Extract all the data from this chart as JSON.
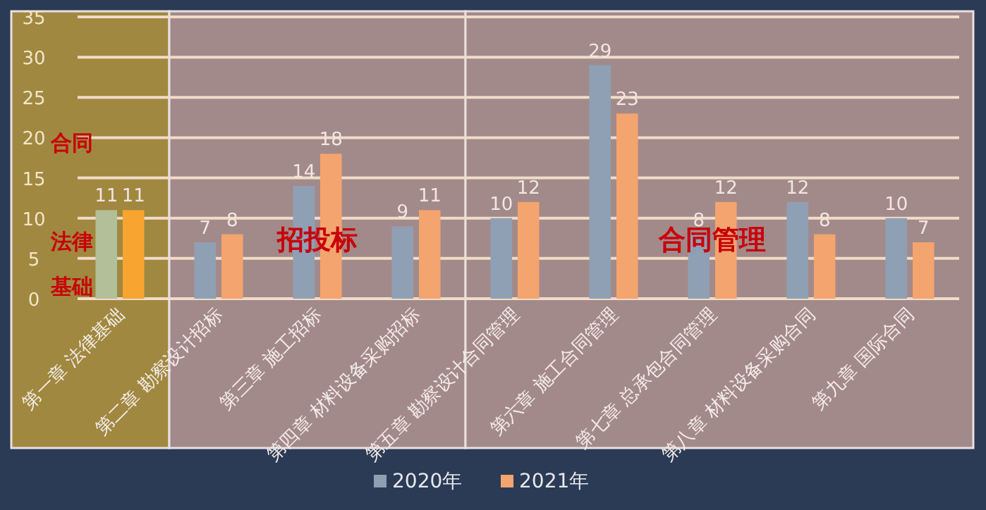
{
  "chart_data": {
    "type": "bar",
    "categories": [
      "第一章 法律基础",
      "第二章 勘察设计招标",
      "第三章 施工招标",
      "第四章 材料设备采购招标",
      "第五章 勘察设计合同管理",
      "第六章 施工合同管理",
      "第七章 总承包合同管理",
      "第八章 材料设备采购合同",
      "第九章 国际合同"
    ],
    "series": [
      {
        "name": "2020年",
        "color": "#8fa0b4",
        "colors": [
          "#b3bf98",
          "#8fa0b4",
          "#8fa0b4",
          "#8fa0b4",
          "#8fa0b4",
          "#8fa0b4",
          "#8fa0b4",
          "#8fa0b4",
          "#8fa0b4"
        ],
        "values": [
          11,
          7,
          14,
          9,
          10,
          29,
          8,
          12,
          10
        ]
      },
      {
        "name": "2021年",
        "color": "#f4a46e",
        "colors": [
          "#f8a430",
          "#f4a46e",
          "#f4a46e",
          "#f4a46e",
          "#f4a46e",
          "#f4a46e",
          "#f4a46e",
          "#f4a46e",
          "#f4a46e"
        ],
        "values": [
          11,
          8,
          18,
          11,
          12,
          23,
          12,
          8,
          7
        ]
      }
    ],
    "ylim": [
      0,
      35
    ],
    "yticks": [
      0,
      5,
      10,
      15,
      20,
      25,
      30,
      35
    ],
    "grid": "y",
    "data_labels": true,
    "annotations": [
      "合同",
      "法律",
      "基础"
    ],
    "legend": "bottom",
    "bands": [
      {
        "axis": "x",
        "from": "第一章 法律基础",
        "to": "第一章 法律基础",
        "color": "#a08840"
      },
      {
        "axis": "x",
        "from": "第二章 勘察设计招标",
        "to": "第四章 材料设备采购招标",
        "label": "招投标",
        "color": "#a38a8a"
      },
      {
        "axis": "x",
        "from": "第五章 勘察设计合同管理",
        "to": "第九章 国际合同",
        "label": "合同管理",
        "color": "#a38a8a"
      }
    ]
  }
}
